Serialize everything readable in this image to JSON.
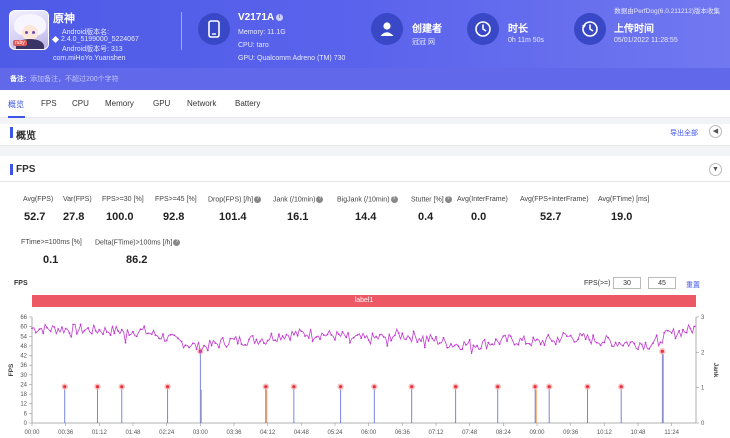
{
  "app": {
    "name": "原神",
    "version_line": "Android版本名:",
    "version_name": "2.4.0_5199000_5224067",
    "version_code": "Android版本号: 313",
    "package": "com.miHoYo.Yuanshen",
    "icon_tag": "ruby"
  },
  "device": {
    "name": "V2171A",
    "memory": "Memory: 11.1G",
    "cpu": "CPU: taro",
    "gpu": "GPU: Qualcomm Adreno (TM) 730"
  },
  "creator": {
    "title": "创建者",
    "value": "冠冠 网"
  },
  "duration": {
    "title": "时长",
    "value": "0h 11m 50s"
  },
  "upload": {
    "title": "上传时间",
    "value": "05/01/2022 11:28:55"
  },
  "perfdog_note": "数据由PerfDog(6.0.211212)版本收集",
  "remark": {
    "label": "备注:",
    "placeholder": "添加备注，不超过200个字符"
  },
  "tabs": [
    "概览",
    "FPS",
    "CPU",
    "Memory",
    "GPU",
    "Network",
    "Battery"
  ],
  "overview": {
    "title": "概览",
    "export": "导出全部"
  },
  "fps_section": {
    "title": "FPS"
  },
  "metrics": [
    {
      "label": "Avg(FPS)",
      "value": "52.7"
    },
    {
      "label": "Var(FPS)",
      "value": "27.8"
    },
    {
      "label": "FPS>=30 [%]",
      "value": "100.0"
    },
    {
      "label": "FPS>=45 [%]",
      "value": "92.8"
    },
    {
      "label": "Drop(FPS) [/h]",
      "value": "101.4"
    },
    {
      "label": "Jank (/10min)",
      "value": "16.1"
    },
    {
      "label": "BigJank (/10min)",
      "value": "14.4"
    },
    {
      "label": "Stutter [%]",
      "value": "0.4"
    },
    {
      "label": "Avg(InterFrame)",
      "value": "0.0"
    },
    {
      "label": "Avg(FPS+InterFrame)",
      "value": "52.7"
    },
    {
      "label": "Avg(FTime) [ms]",
      "value": "19.0"
    },
    {
      "label": "FTime>=100ms [%]",
      "value": "0.1"
    },
    {
      "label": "Delta(FTime)>100ms [/h]",
      "value": "86.2"
    }
  ],
  "chart_controls": {
    "title": "FPS",
    "threshold_label": "FPS(>=)",
    "threshold_1": "30",
    "threshold_2": "45",
    "reset": "重置",
    "label_band": "label1"
  },
  "colors": {
    "accent": "#3d56e8",
    "header": "#5a63ec",
    "fps_line": "#c23bd1",
    "jank_line": "#f28b33",
    "bigjank_line": "#2c3ed1",
    "label_band": "#ec5863"
  },
  "chart_data": {
    "type": "line",
    "xlabel": "",
    "ylabel": "FPS",
    "y2label": "Jank",
    "ylim": [
      0,
      66
    ],
    "y2lim": [
      0,
      3
    ],
    "yticks": [
      0,
      6,
      12,
      18,
      24,
      30,
      36,
      42,
      48,
      54,
      60,
      66
    ],
    "y2ticks": [
      0,
      1,
      2,
      3
    ],
    "xlim": [
      0,
      710
    ],
    "x_tick_labels": [
      "00:00",
      "00:36",
      "01:12",
      "01:48",
      "02:24",
      "03:00",
      "03:36",
      "04:12",
      "04:48",
      "05:24",
      "06:00",
      "06:36",
      "07:12",
      "07:48",
      "08:24",
      "09:00",
      "09:36",
      "10:12",
      "10:48",
      "11:24"
    ],
    "x_tick_seconds": [
      0,
      36,
      72,
      108,
      144,
      180,
      216,
      252,
      288,
      324,
      360,
      396,
      432,
      468,
      504,
      540,
      576,
      612,
      648,
      684
    ],
    "fps_base": [
      [
        0,
        59
      ],
      [
        60,
        58
      ],
      [
        120,
        57
      ],
      [
        150,
        52
      ],
      [
        180,
        47
      ],
      [
        210,
        51
      ],
      [
        240,
        52
      ],
      [
        270,
        55
      ],
      [
        300,
        56
      ],
      [
        330,
        54
      ],
      [
        360,
        52
      ],
      [
        390,
        55
      ],
      [
        420,
        53
      ],
      [
        450,
        49
      ],
      [
        480,
        49
      ],
      [
        510,
        52
      ],
      [
        540,
        50
      ],
      [
        570,
        54
      ],
      [
        600,
        52
      ],
      [
        630,
        50
      ],
      [
        660,
        49
      ],
      [
        680,
        55
      ],
      [
        710,
        59
      ]
    ],
    "fps_drops": [
      [
        42,
        53
      ],
      [
        100,
        50
      ],
      [
        125,
        52
      ],
      [
        170,
        48
      ],
      [
        180,
        44
      ],
      [
        250,
        49
      ],
      [
        300,
        51
      ],
      [
        340,
        50
      ],
      [
        380,
        48
      ],
      [
        420,
        47
      ],
      [
        455,
        47
      ],
      [
        470,
        43
      ],
      [
        525,
        46
      ],
      [
        560,
        49
      ],
      [
        620,
        48
      ],
      [
        650,
        50
      ],
      [
        670,
        48
      ]
    ],
    "bigjank_events": [
      [
        35,
        1
      ],
      [
        70,
        1
      ],
      [
        96,
        1
      ],
      [
        145,
        1
      ],
      [
        180,
        2
      ],
      [
        250,
        1
      ],
      [
        280,
        1
      ],
      [
        330,
        1
      ],
      [
        366,
        1
      ],
      [
        406,
        1
      ],
      [
        453,
        1
      ],
      [
        498,
        1
      ],
      [
        538,
        1
      ],
      [
        553,
        1
      ],
      [
        594,
        1
      ],
      [
        630,
        1
      ],
      [
        674,
        2
      ]
    ],
    "jank_events": [
      [
        180,
        1
      ],
      [
        250,
        1
      ],
      [
        538,
        1
      ],
      [
        674,
        2
      ]
    ]
  }
}
